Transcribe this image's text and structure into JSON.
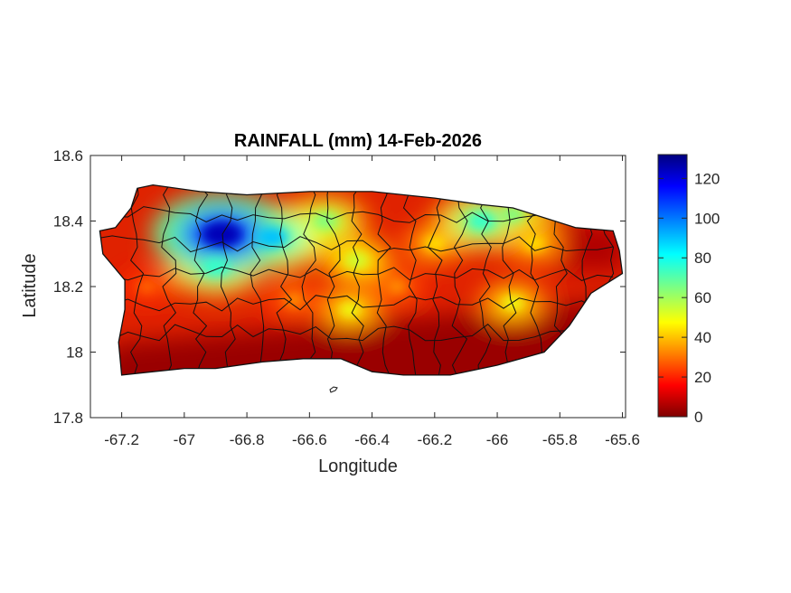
{
  "title": "RAINFALL (mm) 14-Feb-2026",
  "xlabel": "Longitude",
  "ylabel": "Latitude",
  "x_ticks": [
    {
      "value": -67.2,
      "label": "-67.2"
    },
    {
      "value": -67.0,
      "label": "-67"
    },
    {
      "value": -66.8,
      "label": "-66.8"
    },
    {
      "value": -66.6,
      "label": "-66.6"
    },
    {
      "value": -66.4,
      "label": "-66.4"
    },
    {
      "value": -66.2,
      "label": "-66.2"
    },
    {
      "value": -66.0,
      "label": "-66"
    },
    {
      "value": -65.8,
      "label": "-65.8"
    },
    {
      "value": -65.6,
      "label": "-65.6"
    }
  ],
  "y_ticks": [
    {
      "value": 17.8,
      "label": "17.8"
    },
    {
      "value": 18.0,
      "label": "18"
    },
    {
      "value": 18.2,
      "label": "18.2"
    },
    {
      "value": 18.4,
      "label": "18.4"
    },
    {
      "value": 18.6,
      "label": "18.6"
    }
  ],
  "colorbar": {
    "min": 0,
    "max": 132,
    "ticks": [
      {
        "value": 0,
        "label": "0"
      },
      {
        "value": 20,
        "label": "20"
      },
      {
        "value": 40,
        "label": "40"
      },
      {
        "value": 60,
        "label": "60"
      },
      {
        "value": 80,
        "label": "80"
      },
      {
        "value": 100,
        "label": "100"
      },
      {
        "value": 120,
        "label": "120"
      }
    ],
    "colormap": "jet-reversed",
    "colors": [
      "#7f0000",
      "#ff0000",
      "#ffff00",
      "#00ffff",
      "#0000ff",
      "#00007f"
    ]
  },
  "chart_data": {
    "type": "heatmap",
    "title": "RAINFALL (mm) 14-Feb-2026",
    "xlabel": "Longitude",
    "ylabel": "Latitude",
    "xlim": [
      -67.3,
      -65.59
    ],
    "ylim": [
      17.8,
      18.6
    ],
    "value_range": [
      0,
      132
    ],
    "unit": "mm",
    "coastline": [
      [
        -67.27,
        18.37
      ],
      [
        -67.22,
        18.38
      ],
      [
        -67.17,
        18.44
      ],
      [
        -67.15,
        18.5
      ],
      [
        -67.1,
        18.51
      ],
      [
        -66.95,
        18.49
      ],
      [
        -66.8,
        18.48
      ],
      [
        -66.6,
        18.49
      ],
      [
        -66.4,
        18.49
      ],
      [
        -66.2,
        18.47
      ],
      [
        -66.05,
        18.45
      ],
      [
        -65.95,
        18.44
      ],
      [
        -65.85,
        18.41
      ],
      [
        -65.75,
        18.38
      ],
      [
        -65.63,
        18.37
      ],
      [
        -65.61,
        18.31
      ],
      [
        -65.6,
        18.24
      ],
      [
        -65.7,
        18.18
      ],
      [
        -65.77,
        18.08
      ],
      [
        -65.85,
        18.0
      ],
      [
        -66.0,
        17.96
      ],
      [
        -66.15,
        17.93
      ],
      [
        -66.3,
        17.93
      ],
      [
        -66.4,
        17.94
      ],
      [
        -66.5,
        17.98
      ],
      [
        -66.62,
        17.98
      ],
      [
        -66.75,
        17.97
      ],
      [
        -66.9,
        17.95
      ],
      [
        -67.0,
        17.95
      ],
      [
        -67.1,
        17.94
      ],
      [
        -67.2,
        17.93
      ],
      [
        -67.21,
        18.03
      ],
      [
        -67.19,
        18.13
      ],
      [
        -67.19,
        18.22
      ],
      [
        -67.26,
        18.3
      ]
    ],
    "rainfall_peaks": [
      {
        "lon": -66.88,
        "lat": 18.36,
        "value": 125
      },
      {
        "lon": -66.72,
        "lat": 18.35,
        "value": 90
      },
      {
        "lon": -66.9,
        "lat": 18.26,
        "value": 75
      },
      {
        "lon": -66.55,
        "lat": 18.4,
        "value": 65
      },
      {
        "lon": -66.45,
        "lat": 18.28,
        "value": 55
      },
      {
        "lon": -66.2,
        "lat": 18.33,
        "value": 45
      },
      {
        "lon": -66.05,
        "lat": 18.4,
        "value": 75
      },
      {
        "lon": -65.95,
        "lat": 18.42,
        "value": 65
      },
      {
        "lon": -65.88,
        "lat": 18.33,
        "value": 45
      },
      {
        "lon": -65.95,
        "lat": 18.15,
        "value": 50
      },
      {
        "lon": -66.47,
        "lat": 18.13,
        "value": 50
      },
      {
        "lon": -66.65,
        "lat": 18.16,
        "value": 35
      },
      {
        "lon": -66.32,
        "lat": 18.2,
        "value": 35
      },
      {
        "lon": -67.12,
        "lat": 18.2,
        "value": 30
      }
    ]
  }
}
